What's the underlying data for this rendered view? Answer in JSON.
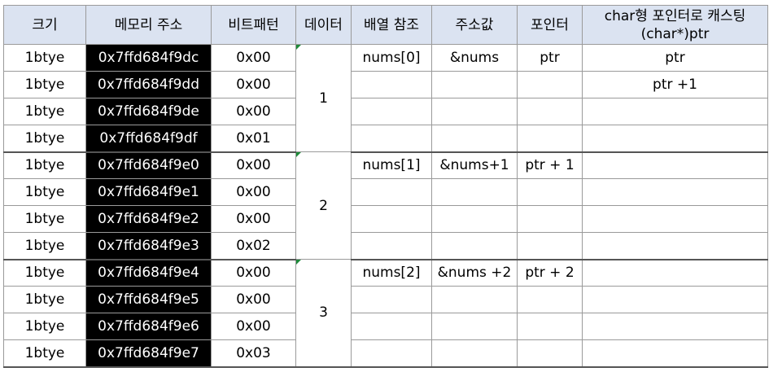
{
  "header": {
    "size": "크기",
    "address": "메모리 주소",
    "bits": "비트패턴",
    "data": "데이터",
    "array_ref": "배열 참조",
    "addr_value": "주소값",
    "pointer": "포인터",
    "char_cast_line1": "char형 포인터로 캐스팅",
    "char_cast_line2": "(char*)ptr"
  },
  "rows": [
    {
      "size": "1btye",
      "address": "0x7ffd684f9dc",
      "bits": "0x00",
      "array_ref": "nums[0]",
      "addr_value": "&nums",
      "pointer": "ptr",
      "char_cast": "ptr"
    },
    {
      "size": "1btye",
      "address": "0x7ffd684f9dd",
      "bits": "0x00",
      "array_ref": "",
      "addr_value": "",
      "pointer": "",
      "char_cast": "ptr +1"
    },
    {
      "size": "1btye",
      "address": "0x7ffd684f9de",
      "bits": "0x00",
      "array_ref": "",
      "addr_value": "",
      "pointer": "",
      "char_cast": ""
    },
    {
      "size": "1btye",
      "address": "0x7ffd684f9df",
      "bits": "0x01",
      "array_ref": "",
      "addr_value": "",
      "pointer": "",
      "char_cast": ""
    },
    {
      "size": "1btye",
      "address": "0x7ffd684f9e0",
      "bits": "0x00",
      "array_ref": "nums[1]",
      "addr_value": "&nums+1",
      "pointer": "ptr + 1",
      "char_cast": ""
    },
    {
      "size": "1btye",
      "address": "0x7ffd684f9e1",
      "bits": "0x00",
      "array_ref": "",
      "addr_value": "",
      "pointer": "",
      "char_cast": ""
    },
    {
      "size": "1btye",
      "address": "0x7ffd684f9e2",
      "bits": "0x00",
      "array_ref": "",
      "addr_value": "",
      "pointer": "",
      "char_cast": ""
    },
    {
      "size": "1btye",
      "address": "0x7ffd684f9e3",
      "bits": "0x02",
      "array_ref": "",
      "addr_value": "",
      "pointer": "",
      "char_cast": ""
    },
    {
      "size": "1btye",
      "address": "0x7ffd684f9e4",
      "bits": "0x00",
      "array_ref": "nums[2]",
      "addr_value": "&nums +2",
      "pointer": "ptr + 2",
      "char_cast": ""
    },
    {
      "size": "1btye",
      "address": "0x7ffd684f9e5",
      "bits": "0x00",
      "array_ref": "",
      "addr_value": "",
      "pointer": "",
      "char_cast": ""
    },
    {
      "size": "1btye",
      "address": "0x7ffd684f9e6",
      "bits": "0x00",
      "array_ref": "",
      "addr_value": "",
      "pointer": "",
      "char_cast": ""
    },
    {
      "size": "1btye",
      "address": "0x7ffd684f9e7",
      "bits": "0x03",
      "array_ref": "",
      "addr_value": "",
      "pointer": "",
      "char_cast": ""
    }
  ],
  "data_values": [
    "1",
    "2",
    "3"
  ],
  "colors": {
    "header_bg": "#dbe3f1",
    "address_bg": "#000000",
    "address_text": "#ffffff",
    "border": "#9a9a9a",
    "comment_marker": "#1e8a3a"
  }
}
